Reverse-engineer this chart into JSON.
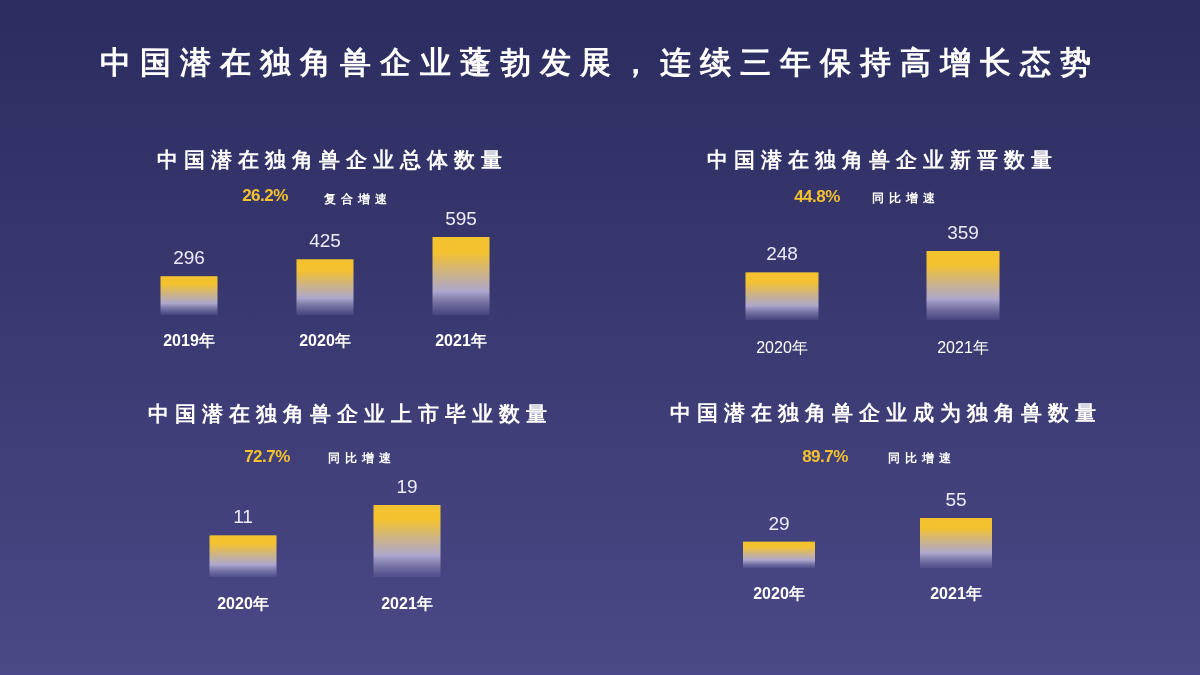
{
  "chart_data": [
    {
      "type": "other",
      "title": "中国潜在独角兽企业蓬勃发展，连续三年保持高增长态势"
    },
    {
      "type": "bar",
      "title": "中国潜在独角兽企业总体数量",
      "annotations": [
        "26.2%",
        "复合增速"
      ],
      "categories": [
        "2019年",
        "2020年",
        "2021年"
      ],
      "values": [
        296,
        425,
        595
      ],
      "color": "#f4c22f",
      "data_labels": true
    },
    {
      "type": "bar",
      "title": "中国潜在独角兽企业新晋数量",
      "annotations": [
        "44.8%",
        "同比增速"
      ],
      "categories": [
        "2020年",
        "2021年"
      ],
      "values": [
        248,
        359
      ],
      "color": "#f4c22f",
      "data_labels": true
    },
    {
      "type": "bar",
      "title": "中国潜在独角兽企业上市毕业数量",
      "annotations": [
        "72.7%",
        "同比增速"
      ],
      "categories": [
        "2020年",
        "2021年"
      ],
      "values": [
        11,
        19
      ],
      "color": "#f4c22f",
      "data_labels": true
    },
    {
      "type": "bar",
      "title": "中国潜在独角兽企业成为独角兽数量",
      "annotations": [
        "89.7%",
        "同比增速"
      ],
      "categories": [
        "2020年",
        "2021年"
      ],
      "values": [
        29,
        55
      ],
      "color": "#f4c22f",
      "data_labels": true
    }
  ]
}
